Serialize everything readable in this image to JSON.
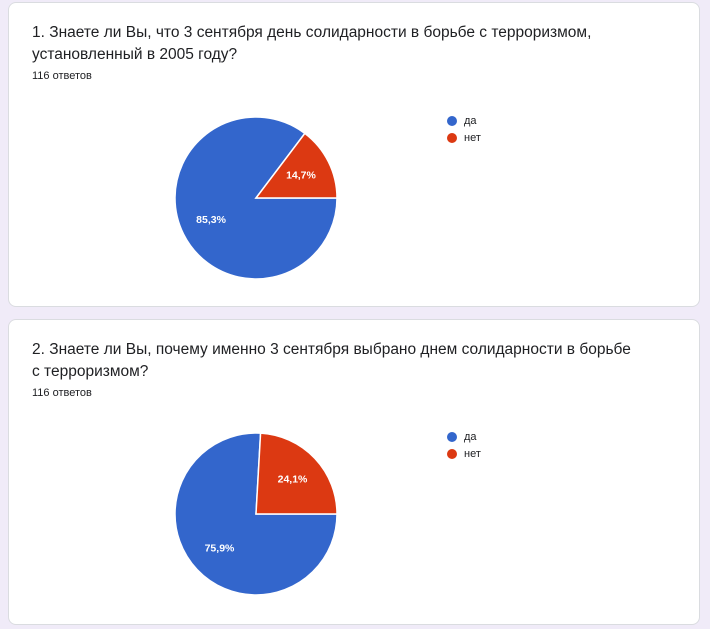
{
  "colors": {
    "background": "#f0ebf8",
    "card": "#ffffff",
    "yes": "#3366cc",
    "no": "#dc3912"
  },
  "questions": [
    {
      "title": "1. Знаете ли Вы, что 3 сентября день солидарности в борьбе с терроризмом, установленный в 2005 году?",
      "responses": "116 ответов",
      "legend": [
        {
          "label": "да",
          "color": "#3366cc"
        },
        {
          "label": "нет",
          "color": "#dc3912"
        }
      ]
    },
    {
      "title": "2. Знаете ли Вы, почему именно 3 сентября выбрано днем солидарности в борьбе с терроризмом?",
      "responses": "116 ответов",
      "legend": [
        {
          "label": "да",
          "color": "#3366cc"
        },
        {
          "label": "нет",
          "color": "#dc3912"
        }
      ]
    }
  ],
  "chart_data": [
    {
      "type": "pie",
      "categories": [
        "да",
        "нет"
      ],
      "values": [
        85.3,
        14.7
      ],
      "labels": [
        "85,3%",
        "14,7%"
      ],
      "colors": [
        "#3366cc",
        "#dc3912"
      ],
      "legend_position": "right"
    },
    {
      "type": "pie",
      "categories": [
        "да",
        "нет"
      ],
      "values": [
        75.9,
        24.1
      ],
      "labels": [
        "75,9%",
        "24,1%"
      ],
      "colors": [
        "#3366cc",
        "#dc3912"
      ],
      "legend_position": "right"
    }
  ]
}
